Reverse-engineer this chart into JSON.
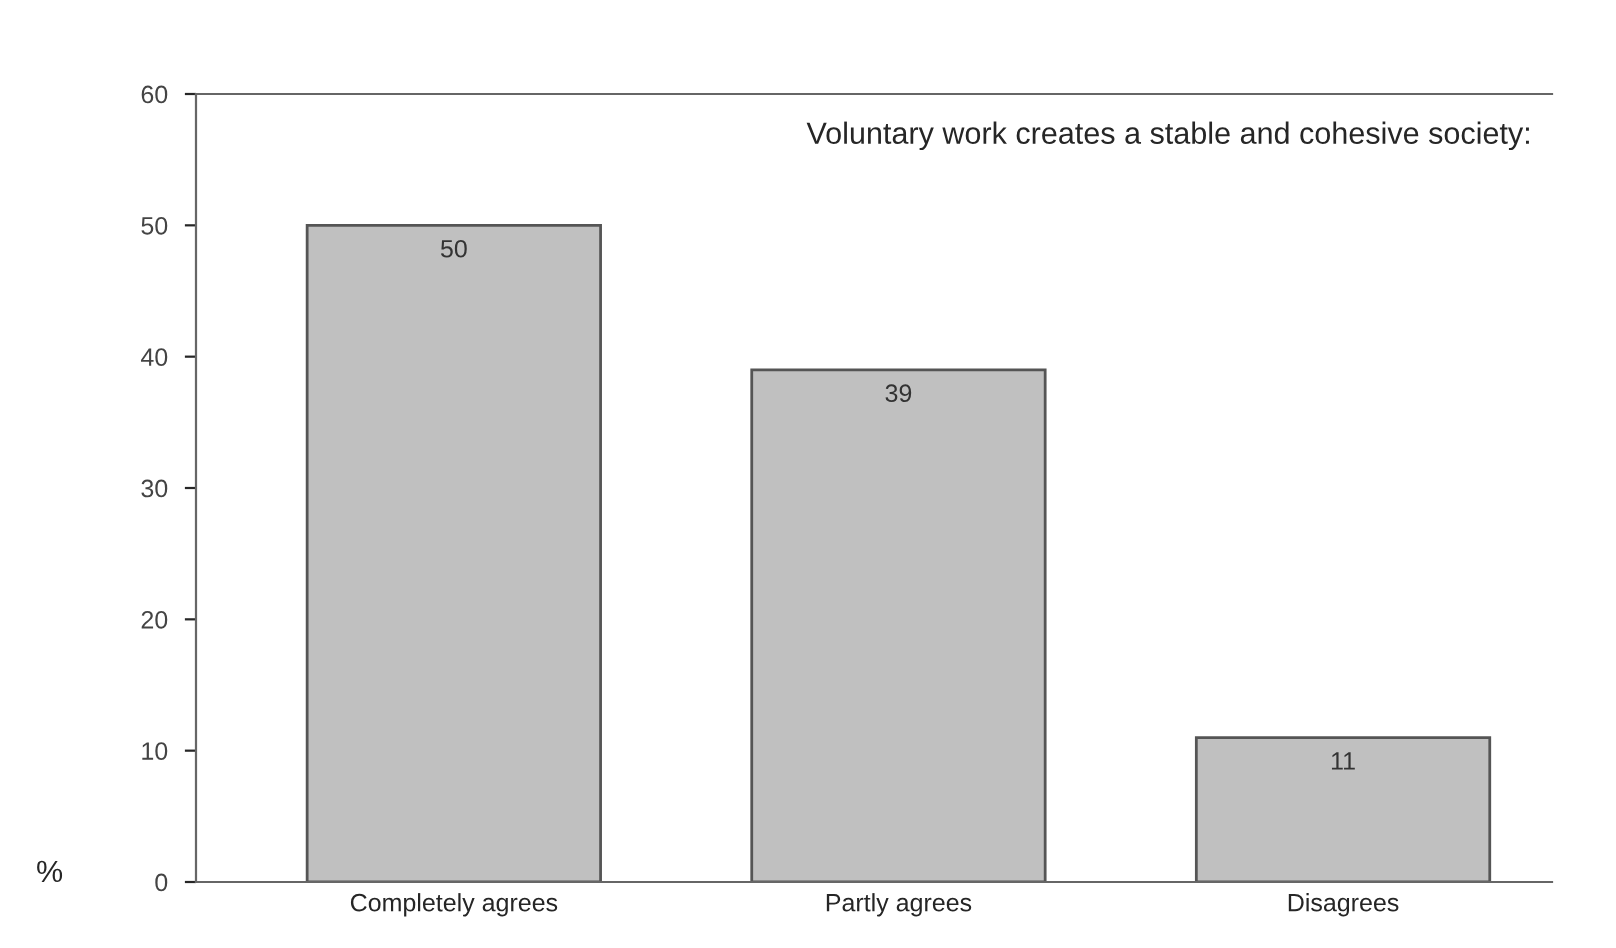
{
  "chart_data": {
    "type": "bar",
    "title": "Voluntary work creates a stable and cohesive society:",
    "ylabel": "%",
    "categories": [
      "Completely agrees",
      "Partly agrees",
      "Disagrees"
    ],
    "values": [
      50,
      39,
      11
    ],
    "color": "#c0c0c0",
    "ylim": [
      0,
      60
    ],
    "yticks": [
      0,
      10,
      20,
      30,
      40,
      50,
      60
    ],
    "grid": false,
    "data_labels": true
  }
}
